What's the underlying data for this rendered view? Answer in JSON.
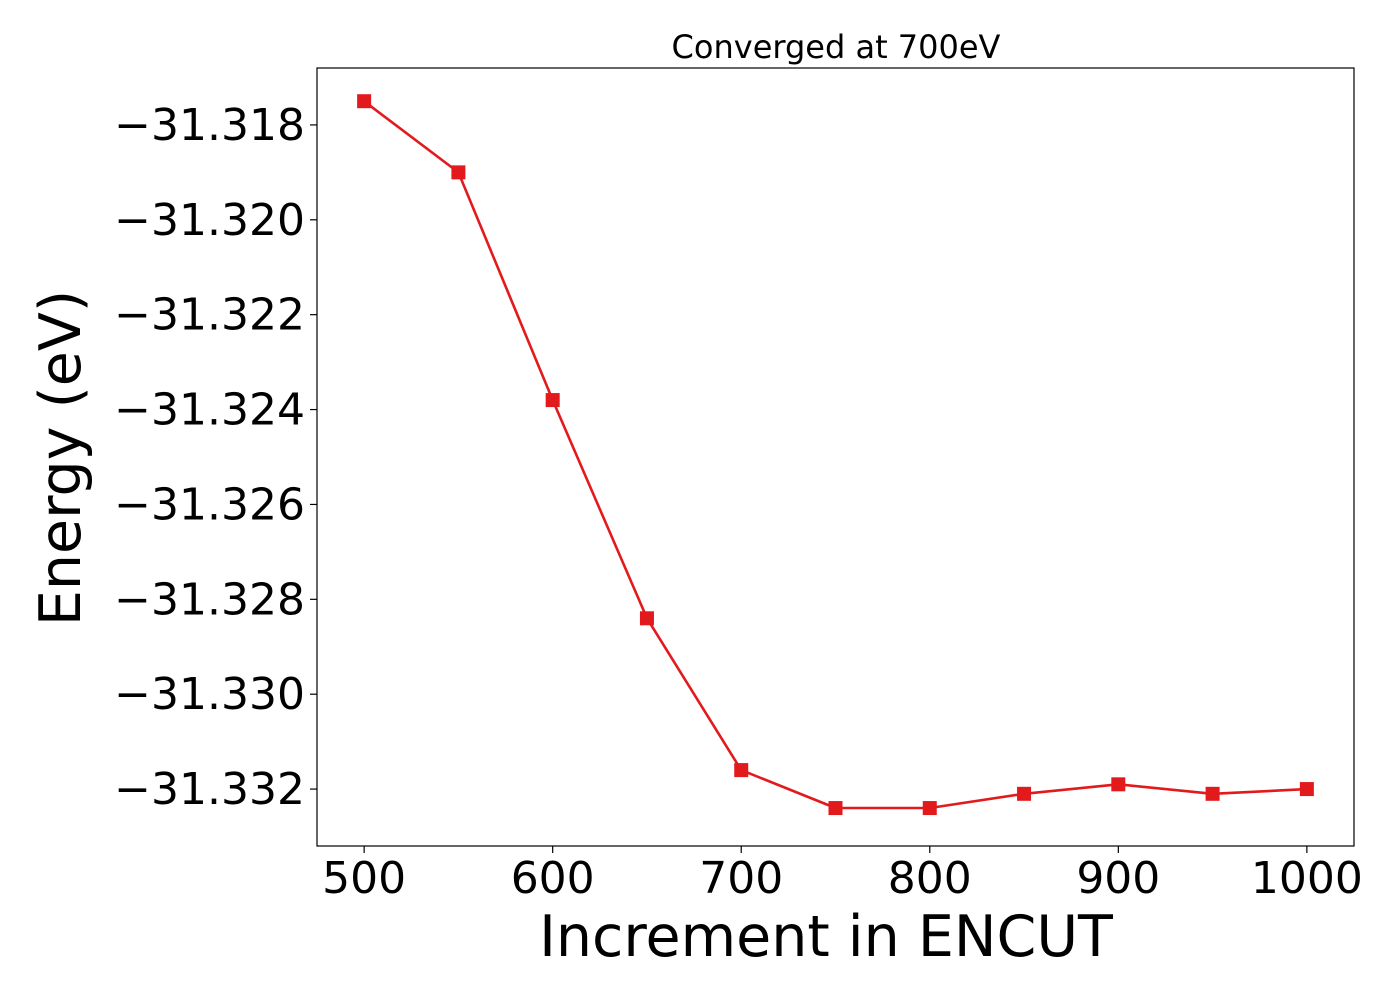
{
  "chart_data": {
    "type": "line",
    "title": "Converged at 700eV",
    "xlabel": "Increment in ENCUT",
    "ylabel": "Energy (eV)",
    "xlim": [
      475,
      1025
    ],
    "ylim": [
      -31.3332,
      -31.3168
    ],
    "xticks": [
      500,
      600,
      700,
      800,
      900,
      1000
    ],
    "yticks": [
      -31.318,
      -31.32,
      -31.322,
      -31.324,
      -31.326,
      -31.328,
      -31.33,
      -31.332
    ],
    "ytick_labels": [
      "−31.318",
      "−31.320",
      "−31.322",
      "−31.324",
      "−31.326",
      "−31.328",
      "−31.330",
      "−31.332"
    ],
    "grid": false,
    "series": [
      {
        "color": "#e31a1c",
        "marker": "square",
        "x": [
          500,
          550,
          600,
          650,
          700,
          750,
          800,
          850,
          900,
          950,
          1000
        ],
        "y": [
          -31.3175,
          -31.319,
          -31.3238,
          -31.3284,
          -31.3316,
          -31.3324,
          -31.3324,
          -31.3321,
          -31.3319,
          -31.3321,
          -31.332
        ]
      }
    ]
  }
}
